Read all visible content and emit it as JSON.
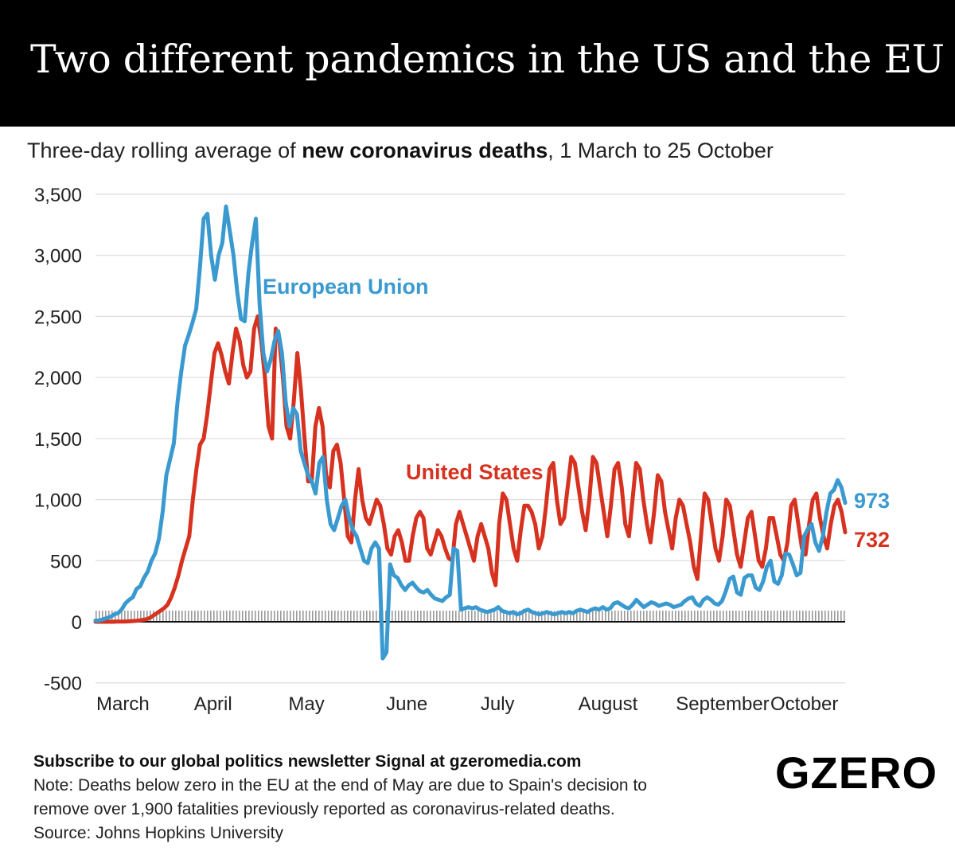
{
  "header": {
    "title": "Two different pandemics in the US and the EU",
    "subtitle_prefix": "Three-day rolling average of ",
    "subtitle_bold": "new coronavirus deaths",
    "subtitle_suffix": ", 1 March to 25 October"
  },
  "colors": {
    "eu": "#3a9ad0",
    "us": "#d7321f",
    "grid": "#d6d6d6",
    "zero": "#111111",
    "hatch": "#9a9a9a"
  },
  "chart_data": {
    "type": "line",
    "title": "Two different pandemics in the US and the EU",
    "subtitle": "Three-day rolling average of new coronavirus deaths, 1 March to 25 October",
    "xlabel": "",
    "ylabel": "",
    "ylim": [
      -500,
      3500
    ],
    "yticks": [
      -500,
      0,
      500,
      1000,
      1500,
      2000,
      2500,
      3000,
      3500
    ],
    "ytick_labels": [
      "-500",
      "0",
      "500",
      "1,000",
      "1,500",
      "2,000",
      "2,500",
      "3,000",
      "3,500"
    ],
    "x_start": "1 March",
    "x_end": "25 October",
    "months": [
      {
        "label": "March",
        "day": 0
      },
      {
        "label": "April",
        "day": 31
      },
      {
        "label": "May",
        "day": 61
      },
      {
        "label": "June",
        "day": 92
      },
      {
        "label": "July",
        "day": 122
      },
      {
        "label": "August",
        "day": 153
      },
      {
        "label": "September",
        "day": 184
      },
      {
        "label": "October",
        "day": 214
      }
    ],
    "series": [
      {
        "name": "European Union",
        "end_label": "973",
        "values": [
          10,
          10,
          20,
          30,
          40,
          60,
          70,
          100,
          150,
          180,
          200,
          270,
          290,
          360,
          410,
          500,
          560,
          680,
          900,
          1200,
          1330,
          1460,
          1800,
          2050,
          2260,
          2350,
          2450,
          2560,
          2900,
          3300,
          3340,
          3000,
          2800,
          3000,
          3100,
          3400,
          3200,
          3000,
          2700,
          2480,
          2460,
          2850,
          3100,
          3300,
          2600,
          2200,
          2050,
          2150,
          2300,
          2380,
          2200,
          1800,
          1600,
          1750,
          1700,
          1400,
          1300,
          1200,
          1150,
          1050,
          1300,
          1350,
          1000,
          800,
          750,
          850,
          950,
          1000,
          850,
          750,
          700,
          600,
          500,
          480,
          600,
          650,
          600,
          -300,
          -250,
          470,
          380,
          360,
          300,
          260,
          300,
          320,
          280,
          250,
          240,
          260,
          220,
          190,
          180,
          170,
          200,
          220,
          600,
          580,
          100,
          110,
          120,
          110,
          120,
          100,
          90,
          80,
          90,
          100,
          120,
          90,
          80,
          70,
          80,
          60,
          70,
          90,
          100,
          80,
          70,
          60,
          70,
          80,
          70,
          60,
          70,
          80,
          70,
          80,
          70,
          90,
          100,
          90,
          80,
          100,
          110,
          100,
          120,
          100,
          110,
          150,
          160,
          140,
          120,
          110,
          140,
          180,
          150,
          120,
          140,
          160,
          150,
          130,
          140,
          150,
          140,
          120,
          130,
          140,
          170,
          190,
          200,
          150,
          130,
          180,
          200,
          180,
          150,
          140,
          170,
          250,
          350,
          370,
          240,
          220,
          360,
          380,
          380,
          280,
          260,
          330,
          450,
          500,
          330,
          310,
          380,
          560,
          550,
          470,
          380,
          400,
          700,
          760,
          800,
          650,
          580,
          700,
          900,
          1050,
          1080,
          1160,
          1100,
          973
        ],
        "color": "#3a9ad0"
      },
      {
        "name": "United States",
        "end_label": "732",
        "values": [
          0,
          0,
          0,
          0,
          0,
          0,
          1,
          1,
          2,
          3,
          5,
          7,
          10,
          15,
          20,
          30,
          50,
          70,
          90,
          110,
          140,
          200,
          280,
          380,
          500,
          600,
          700,
          1000,
          1250,
          1450,
          1500,
          1700,
          1950,
          2200,
          2280,
          2180,
          2050,
          1950,
          2200,
          2400,
          2300,
          2100,
          2000,
          2050,
          2400,
          2500,
          2300,
          2000,
          1600,
          1500,
          2400,
          2300,
          2000,
          1600,
          1500,
          1800,
          2200,
          1900,
          1500,
          1150,
          1150,
          1600,
          1750,
          1600,
          1200,
          1100,
          1400,
          1450,
          1300,
          1000,
          700,
          650,
          1000,
          1250,
          1000,
          850,
          800,
          900,
          1000,
          950,
          800,
          600,
          550,
          700,
          750,
          650,
          500,
          500,
          700,
          850,
          900,
          850,
          600,
          550,
          650,
          750,
          700,
          600,
          520,
          500,
          800,
          900,
          800,
          700,
          600,
          500,
          700,
          800,
          700,
          600,
          400,
          300,
          800,
          1050,
          1000,
          800,
          600,
          500,
          750,
          950,
          950,
          900,
          800,
          600,
          700,
          950,
          1250,
          1300,
          1000,
          800,
          850,
          1100,
          1350,
          1300,
          1100,
          900,
          750,
          1000,
          1350,
          1300,
          1100,
          900,
          700,
          950,
          1250,
          1300,
          1100,
          800,
          700,
          1000,
          1300,
          1250,
          1000,
          800,
          650,
          900,
          1200,
          1150,
          900,
          750,
          600,
          850,
          1000,
          950,
          800,
          650,
          450,
          350,
          700,
          1050,
          1000,
          800,
          600,
          500,
          700,
          1000,
          950,
          750,
          550,
          450,
          650,
          850,
          900,
          700,
          500,
          450,
          600,
          850,
          850,
          700,
          550,
          500,
          650,
          950,
          1000,
          800,
          600,
          550,
          800,
          1000,
          1050,
          850,
          700,
          600,
          800,
          950,
          1000,
          900,
          732
        ],
        "color": "#d7321f"
      }
    ],
    "annotations": [
      {
        "text": "European Union",
        "series": "European Union"
      },
      {
        "text": "United States",
        "series": "United States"
      }
    ]
  },
  "footer": {
    "subscribe": "Subscribe to our global politics newsletter Signal at gzeromedia.com",
    "note_line1": "Note: Deaths below zero in the EU at the end of May are due to Spain's decision to",
    "note_line2": "remove over 1,900 fatalities previously reported as coronavirus-related deaths.",
    "source": "Source: Johns Hopkins University",
    "logo": "GZERO"
  }
}
